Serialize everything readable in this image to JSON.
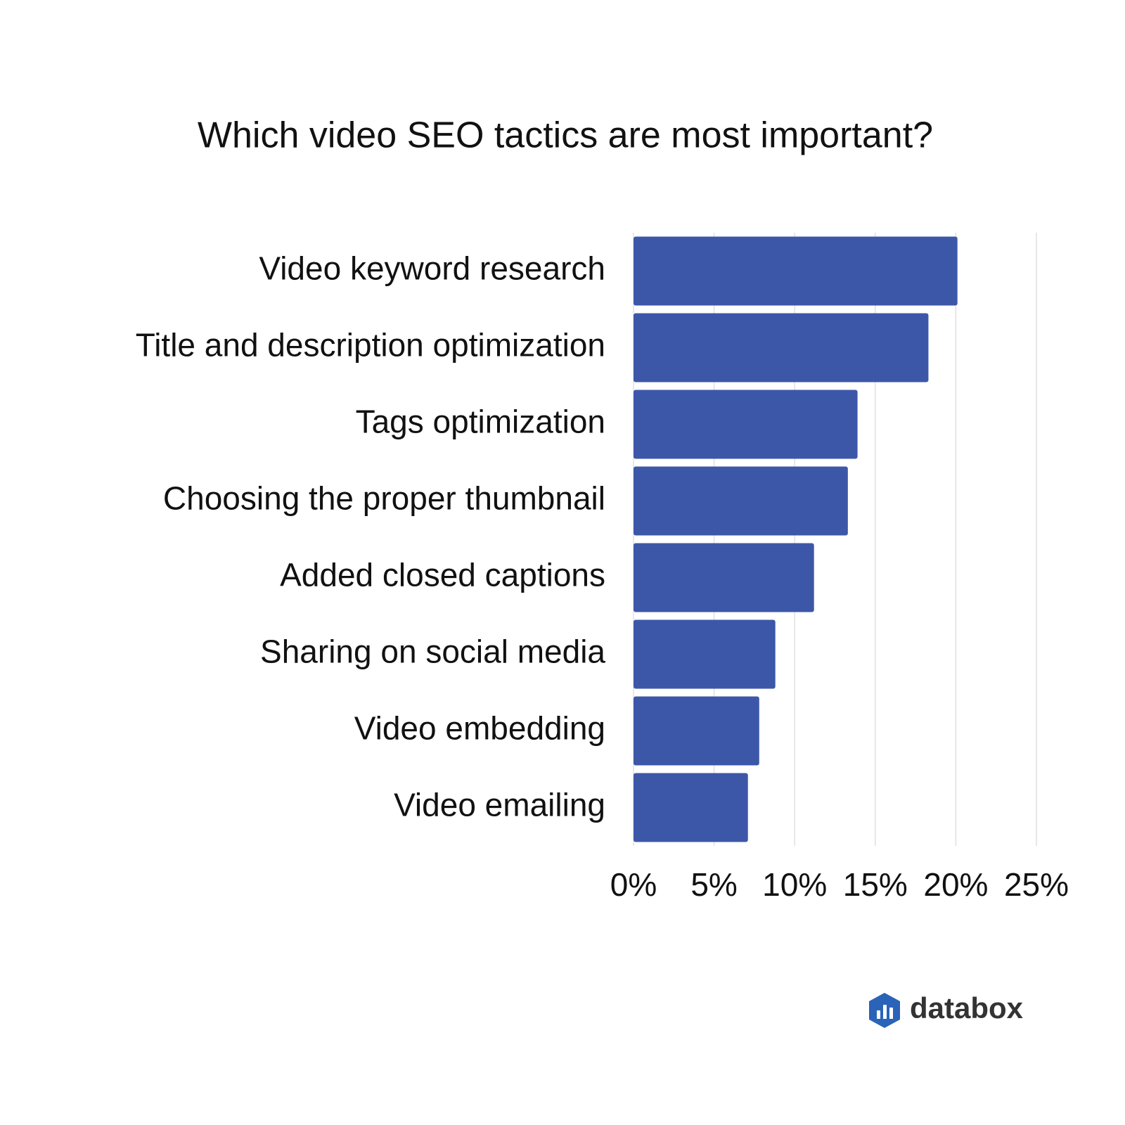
{
  "chart_data": {
    "type": "bar",
    "orientation": "horizontal",
    "title": "Which video SEO tactics are most important?",
    "categories": [
      "Video keyword research",
      "Title and description optimization",
      "Tags optimization",
      "Choosing the proper thumbnail",
      "Added closed captions",
      "Sharing on social media",
      "Video embedding",
      "Video emailing"
    ],
    "values": [
      20.1,
      18.3,
      13.9,
      13.3,
      11.2,
      8.8,
      7.8,
      7.1
    ],
    "color": "#3d57a8",
    "xlim": [
      0,
      25
    ],
    "xticks": [
      {
        "value": 0,
        "label": "0%"
      },
      {
        "value": 5,
        "label": "5%"
      },
      {
        "value": 10,
        "label": "10%"
      },
      {
        "value": 15,
        "label": "15%"
      },
      {
        "value": 20,
        "label": "20%"
      },
      {
        "value": 25,
        "label": "25%"
      }
    ],
    "grid": true
  },
  "logo": "databox"
}
